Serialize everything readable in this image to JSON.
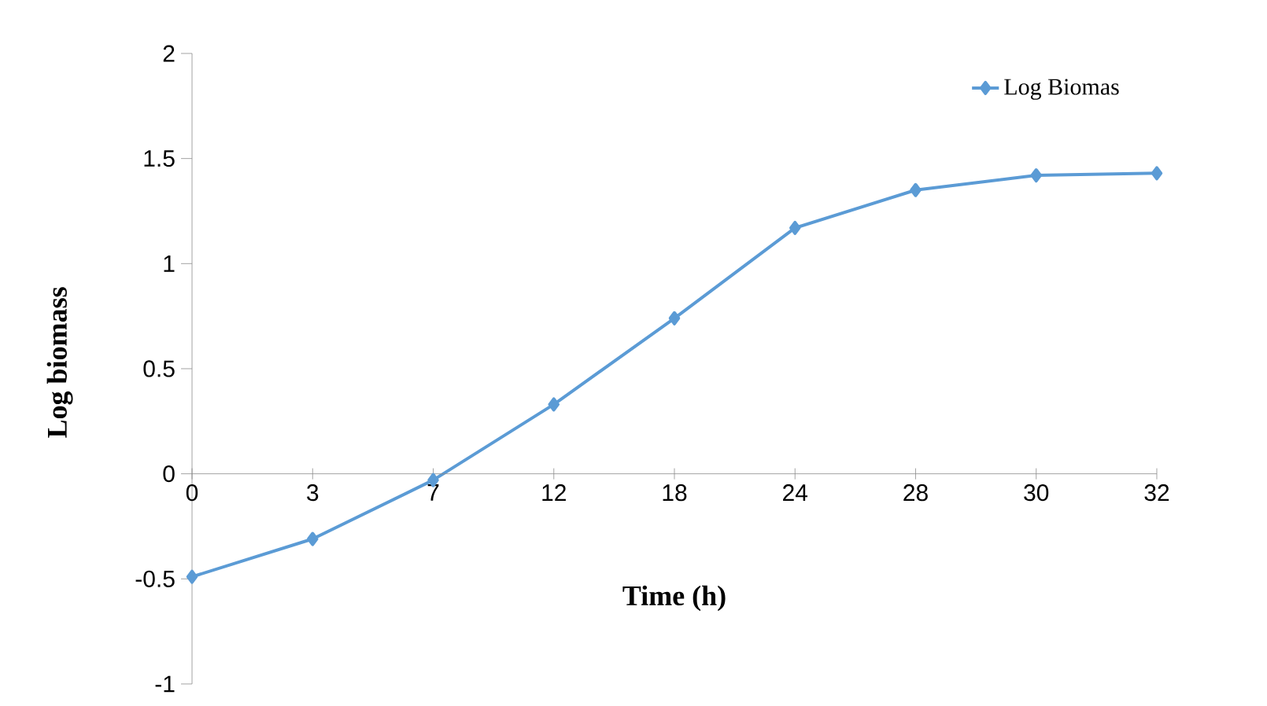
{
  "chart_data": {
    "type": "line",
    "xlabel": "Time (h)",
    "ylabel": "Log biomass",
    "categories": [
      "0",
      "3",
      "7",
      "12",
      "18",
      "24",
      "28",
      "30",
      "32"
    ],
    "series": [
      {
        "name": "Log Biomas",
        "color": "#5b9bd5",
        "values": [
          -0.49,
          -0.31,
          -0.03,
          0.33,
          0.74,
          1.17,
          1.35,
          1.42,
          1.43
        ]
      }
    ],
    "ylim": [
      -1,
      2
    ],
    "yticks": [
      -1,
      -0.5,
      0,
      0.5,
      1,
      1.5,
      2
    ],
    "legend": "top right",
    "marker": "diamond",
    "line_style": "solid",
    "grid": false
  }
}
